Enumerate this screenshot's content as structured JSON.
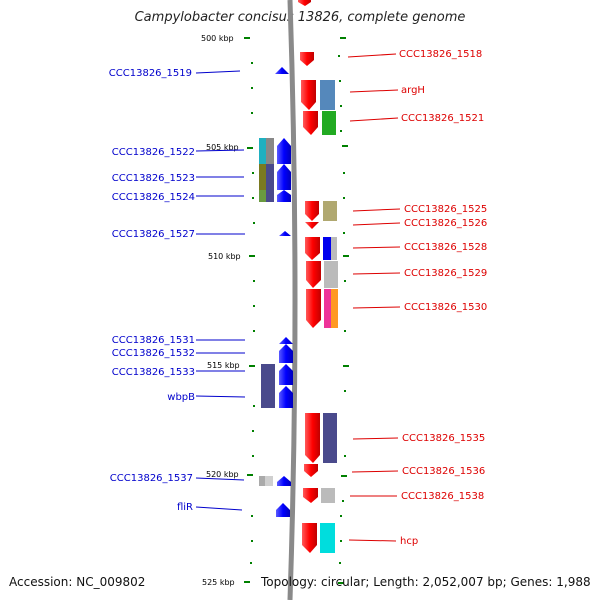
{
  "title": "Campylobacter concisus 13826, complete genome",
  "footer": {
    "accession": "Accession: NC_009802",
    "summary": "Topology: circular; Length: 2,052,007 bp; Genes: 1,988"
  },
  "colors": {
    "backbone": "#8a8a8a",
    "forward_gene": "#ff0000",
    "reverse_gene": "#0000ff",
    "forward_label": "#dd0000",
    "reverse_label": "#0000cc",
    "tick": "#008000"
  },
  "scale_labels": [
    {
      "text": "500 kbp",
      "kbp": 500
    },
    {
      "text": "505 kbp",
      "kbp": 505
    },
    {
      "text": "510 kbp",
      "kbp": 510
    },
    {
      "text": "515 kbp",
      "kbp": 515
    },
    {
      "text": "520 kbp",
      "kbp": 520
    },
    {
      "text": "525 kbp",
      "kbp": 525
    }
  ],
  "left_labels": [
    "CCC13826_1519",
    "CCC13826_1522",
    "CCC13826_1523",
    "CCC13826_1524",
    "CCC13826_1527",
    "CCC13826_1531",
    "CCC13826_1532",
    "CCC13826_1533",
    "wbpB",
    "CCC13826_1537",
    "fliR"
  ],
  "right_labels": [
    "CCC13826_1518",
    "argH",
    "CCC13826_1521",
    "CCC13826_1525",
    "CCC13826_1526",
    "CCC13826_1528",
    "CCC13826_1529",
    "CCC13826_1530",
    "CCC13826_1535",
    "CCC13826_1536",
    "CCC13826_1538",
    "hcp"
  ]
}
